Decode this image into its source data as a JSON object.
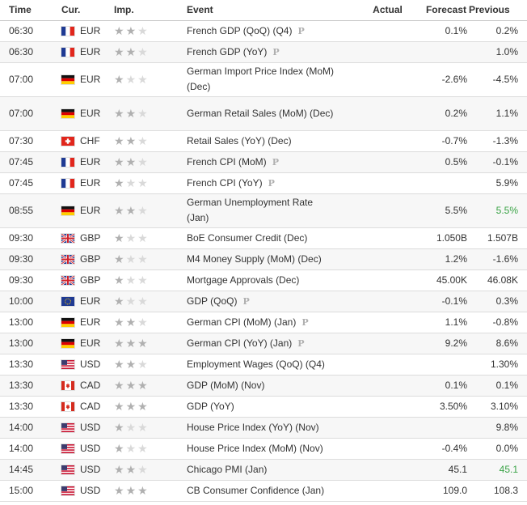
{
  "header": {
    "time": "Time",
    "currency": "Cur.",
    "importance": "Imp.",
    "event": "Event",
    "actual": "Actual",
    "forecast": "Forecast",
    "previous": "Previous"
  },
  "colors": {
    "positive_previous": "#3aa346",
    "star_filled": "#b0b0b0",
    "star_empty": "#d9d9d9"
  },
  "rows": [
    {
      "time": "06:30",
      "flag": "fr",
      "cur": "EUR",
      "imp": 2,
      "event": "French GDP (QoQ) (Q4)",
      "prelim": "P",
      "actual": "",
      "forecast": "0.1%",
      "previous": "0.2%",
      "prev_color": ""
    },
    {
      "time": "06:30",
      "flag": "fr",
      "cur": "EUR",
      "imp": 2,
      "event": "French GDP (YoY)",
      "prelim": "P",
      "actual": "",
      "forecast": "",
      "previous": "1.0%",
      "prev_color": ""
    },
    {
      "time": "07:00",
      "flag": "de",
      "cur": "EUR",
      "imp": 1,
      "event": "German Import Price Index (MoM) (Dec)",
      "prelim": "",
      "actual": "",
      "forecast": "-2.6%",
      "previous": "-4.5%",
      "prev_color": ""
    },
    {
      "time": "07:00",
      "flag": "de",
      "cur": "EUR",
      "imp": 2,
      "event": "German Retail Sales (MoM) (Dec)",
      "prelim": "",
      "actual": "",
      "forecast": "0.2%",
      "previous": "1.1%",
      "prev_color": ""
    },
    {
      "time": "07:30",
      "flag": "ch",
      "cur": "CHF",
      "imp": 2,
      "event": "Retail Sales (YoY) (Dec)",
      "prelim": "",
      "actual": "",
      "forecast": "-0.7%",
      "previous": "-1.3%",
      "prev_color": ""
    },
    {
      "time": "07:45",
      "flag": "fr",
      "cur": "EUR",
      "imp": 2,
      "event": "French CPI (MoM)",
      "prelim": "P",
      "actual": "",
      "forecast": "0.5%",
      "previous": "-0.1%",
      "prev_color": ""
    },
    {
      "time": "07:45",
      "flag": "fr",
      "cur": "EUR",
      "imp": 1,
      "event": "French CPI (YoY)",
      "prelim": "P",
      "actual": "",
      "forecast": "",
      "previous": "5.9%",
      "prev_color": ""
    },
    {
      "time": "08:55",
      "flag": "de",
      "cur": "EUR",
      "imp": 2,
      "event": "German Unemployment Rate (Jan)",
      "prelim": "",
      "actual": "",
      "forecast": "5.5%",
      "previous": "5.5%",
      "prev_color": "green"
    },
    {
      "time": "09:30",
      "flag": "gb",
      "cur": "GBP",
      "imp": 1,
      "event": "BoE Consumer Credit (Dec)",
      "prelim": "",
      "actual": "",
      "forecast": "1.050B",
      "previous": "1.507B",
      "prev_color": ""
    },
    {
      "time": "09:30",
      "flag": "gb",
      "cur": "GBP",
      "imp": 1,
      "event": "M4 Money Supply (MoM) (Dec)",
      "prelim": "",
      "actual": "",
      "forecast": "1.2%",
      "previous": "-1.6%",
      "prev_color": ""
    },
    {
      "time": "09:30",
      "flag": "gb",
      "cur": "GBP",
      "imp": 1,
      "event": "Mortgage Approvals (Dec)",
      "prelim": "",
      "actual": "",
      "forecast": "45.00K",
      "previous": "46.08K",
      "prev_color": ""
    },
    {
      "time": "10:00",
      "flag": "eu",
      "cur": "EUR",
      "imp": 1,
      "event": "GDP (QoQ)",
      "prelim": "P",
      "actual": "",
      "forecast": "-0.1%",
      "previous": "0.3%",
      "prev_color": ""
    },
    {
      "time": "13:00",
      "flag": "de",
      "cur": "EUR",
      "imp": 2,
      "event": "German CPI (MoM) (Jan)",
      "prelim": "P",
      "actual": "",
      "forecast": "1.1%",
      "previous": "-0.8%",
      "prev_color": ""
    },
    {
      "time": "13:00",
      "flag": "de",
      "cur": "EUR",
      "imp": 3,
      "event": "German CPI (YoY) (Jan)",
      "prelim": "P",
      "actual": "",
      "forecast": "9.2%",
      "previous": "8.6%",
      "prev_color": ""
    },
    {
      "time": "13:30",
      "flag": "us",
      "cur": "USD",
      "imp": 2,
      "event": "Employment Wages (QoQ) (Q4)",
      "prelim": "",
      "actual": "",
      "forecast": "",
      "previous": "1.30%",
      "prev_color": ""
    },
    {
      "time": "13:30",
      "flag": "ca",
      "cur": "CAD",
      "imp": 3,
      "event": "GDP (MoM) (Nov)",
      "prelim": "",
      "actual": "",
      "forecast": "0.1%",
      "previous": "0.1%",
      "prev_color": ""
    },
    {
      "time": "13:30",
      "flag": "ca",
      "cur": "CAD",
      "imp": 3,
      "event": "GDP (YoY)",
      "prelim": "",
      "actual": "",
      "forecast": "3.50%",
      "previous": "3.10%",
      "prev_color": ""
    },
    {
      "time": "14:00",
      "flag": "us",
      "cur": "USD",
      "imp": 1,
      "event": "House Price Index (YoY) (Nov)",
      "prelim": "",
      "actual": "",
      "forecast": "",
      "previous": "9.8%",
      "prev_color": ""
    },
    {
      "time": "14:00",
      "flag": "us",
      "cur": "USD",
      "imp": 1,
      "event": "House Price Index (MoM) (Nov)",
      "prelim": "",
      "actual": "",
      "forecast": "-0.4%",
      "previous": "0.0%",
      "prev_color": ""
    },
    {
      "time": "14:45",
      "flag": "us",
      "cur": "USD",
      "imp": 2,
      "event": "Chicago PMI (Jan)",
      "prelim": "",
      "actual": "",
      "forecast": "45.1",
      "previous": "45.1",
      "prev_color": "green"
    },
    {
      "time": "15:00",
      "flag": "us",
      "cur": "USD",
      "imp": 3,
      "event": "CB Consumer Confidence (Jan)",
      "prelim": "",
      "actual": "",
      "forecast": "109.0",
      "previous": "108.3",
      "prev_color": ""
    }
  ]
}
